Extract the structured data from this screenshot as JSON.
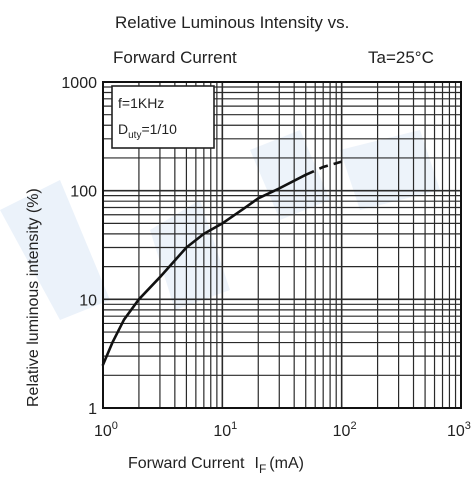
{
  "chart_data": {
    "type": "line",
    "title_line1": "Relative Luminous Intensity vs.",
    "title_line2": "Forward Current",
    "condition": "Ta=25°C",
    "xlabel": "Forward Current",
    "xlabel_symbol": "I",
    "xlabel_sub": "F",
    "xlabel_unit": "(mA)",
    "ylabel": "Relative luminous intensity (%)",
    "xscale": "log",
    "yscale": "log",
    "xlim": [
      1,
      1000
    ],
    "ylim": [
      1,
      1000
    ],
    "grid": true,
    "x_ticks": [
      {
        "base": "10",
        "exp": "0"
      },
      {
        "base": "10",
        "exp": "1"
      },
      {
        "base": "10",
        "exp": "2"
      },
      {
        "base": "10",
        "exp": "3"
      }
    ],
    "y_ticks": [
      "1",
      "10",
      "100",
      "1000"
    ],
    "annotation_line1": "f=1KHz",
    "annotation_line2_prefix": "D",
    "annotation_line2_sub": "uty",
    "annotation_line2_suffix": "=1/10",
    "series": [
      {
        "x": [
          1.0,
          1.2,
          1.5,
          2.0,
          3.0,
          5.0,
          7.0,
          10,
          15,
          20,
          30,
          50,
          70,
          100
        ],
        "y": [
          2.5,
          4.0,
          6.5,
          10,
          16,
          30,
          40,
          50,
          68,
          85,
          105,
          140,
          165,
          185
        ],
        "dashed_from_x": 50
      }
    ],
    "line_color": "#111111",
    "grid_color": "#2a2a2a"
  }
}
